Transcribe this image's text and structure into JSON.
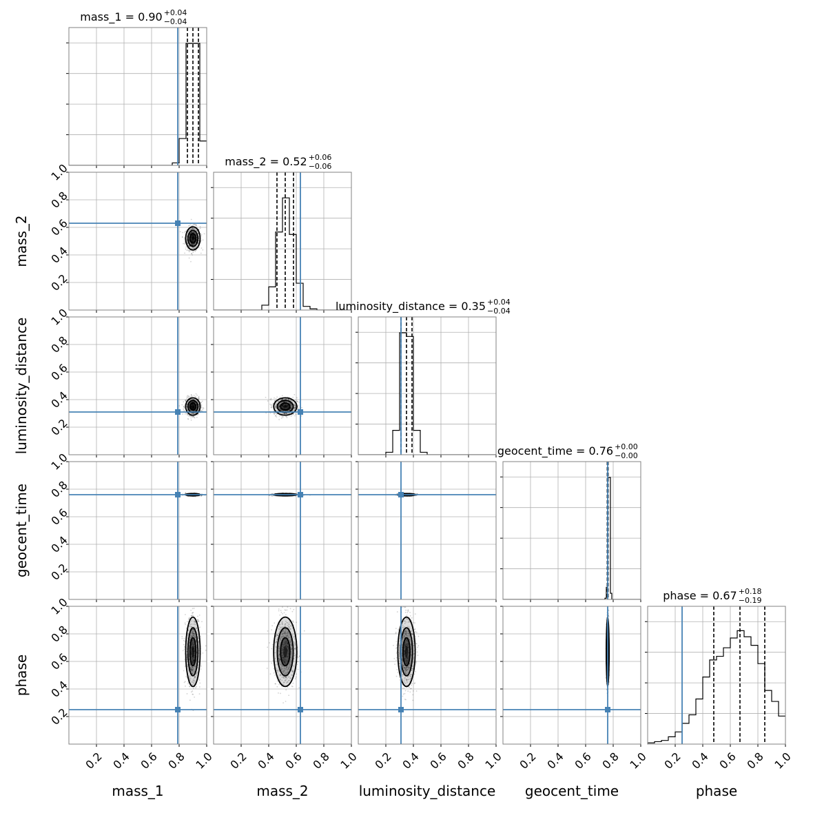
{
  "figure": {
    "type": "corner-plot"
  },
  "colors": {
    "truth": "#4682b4",
    "hist": "#000000",
    "grid": "#b0b0b0",
    "frame": "#808080"
  },
  "chart_data": {
    "type": "scatter",
    "parameters": [
      "mass_1",
      "mass_2",
      "luminosity_distance",
      "geocent_time",
      "phase"
    ],
    "axis_labels": [
      "mass_1",
      "mass_2",
      "luminosity_distance",
      "geocent_time",
      "phase"
    ],
    "titles": [
      {
        "main": "mass_1 = 0.90",
        "upper": "+0.04",
        "lower": "−0.04"
      },
      {
        "main": "mass_2 = 0.52",
        "upper": "+0.06",
        "lower": "−0.06"
      },
      {
        "main": "luminosity_distance = 0.35",
        "upper": "+0.04",
        "lower": "−0.04"
      },
      {
        "main": "geocent_time = 0.76",
        "upper": "+0.00",
        "lower": "−0.00"
      },
      {
        "main": "phase = 0.67",
        "upper": "+0.18",
        "lower": "−0.19"
      }
    ],
    "xlim": [
      0,
      1
    ],
    "ylim": [
      0,
      1
    ],
    "ticks": [
      0.2,
      0.4,
      0.6,
      0.8,
      1.0
    ],
    "tick_labels": [
      "0.2",
      "0.4",
      "0.6",
      "0.8",
      "1.0"
    ],
    "grid": true,
    "truths": [
      0.79,
      0.63,
      0.31,
      0.76,
      0.25
    ],
    "medians": [
      0.9,
      0.52,
      0.35,
      0.76,
      0.67
    ],
    "quantiles": [
      [
        0.86,
        0.9,
        0.94
      ],
      [
        0.46,
        0.52,
        0.58
      ],
      [
        0.31,
        0.35,
        0.39
      ],
      [
        0.757,
        0.76,
        0.763
      ],
      [
        0.48,
        0.67,
        0.85
      ]
    ],
    "spreads": [
      0.025,
      0.04,
      0.03,
      0.004,
      0.12
    ],
    "histograms": [
      {
        "edges": [
          0.0,
          0.75,
          0.8,
          0.85,
          0.9,
          0.95,
          1.0
        ],
        "counts": [
          0,
          0.02,
          0.22,
          1.0,
          1.0,
          0.2
        ]
      },
      {
        "edges": [
          0.0,
          0.35,
          0.4,
          0.45,
          0.5,
          0.55,
          0.6,
          0.65,
          0.7,
          0.75,
          1.0
        ],
        "counts": [
          0,
          0.04,
          0.19,
          0.64,
          0.92,
          0.62,
          0.22,
          0.03,
          0.01,
          0
        ]
      },
      {
        "edges": [
          0.0,
          0.2,
          0.25,
          0.3,
          0.35,
          0.4,
          0.45,
          0.5,
          1.0
        ],
        "counts": [
          0,
          0.02,
          0.2,
          1.0,
          0.97,
          0.2,
          0.02,
          0
        ]
      },
      {
        "edges": [
          0.0,
          0.74,
          0.75,
          0.76,
          0.77,
          0.78,
          0.79,
          1.0
        ],
        "counts": [
          0,
          0.01,
          0.1,
          1.0,
          1.0,
          0.05,
          0
        ]
      },
      {
        "edges": [
          0.0,
          0.05,
          0.1,
          0.15,
          0.2,
          0.25,
          0.3,
          0.35,
          0.4,
          0.45,
          0.5,
          0.55,
          0.6,
          0.65,
          0.7,
          0.75,
          0.8,
          0.85,
          0.9,
          0.95,
          1.0
        ],
        "counts": [
          0.01,
          0.02,
          0.03,
          0.06,
          0.1,
          0.17,
          0.24,
          0.37,
          0.55,
          0.69,
          0.72,
          0.79,
          0.87,
          0.93,
          0.88,
          0.81,
          0.66,
          0.44,
          0.35,
          0.23
        ]
      }
    ]
  }
}
